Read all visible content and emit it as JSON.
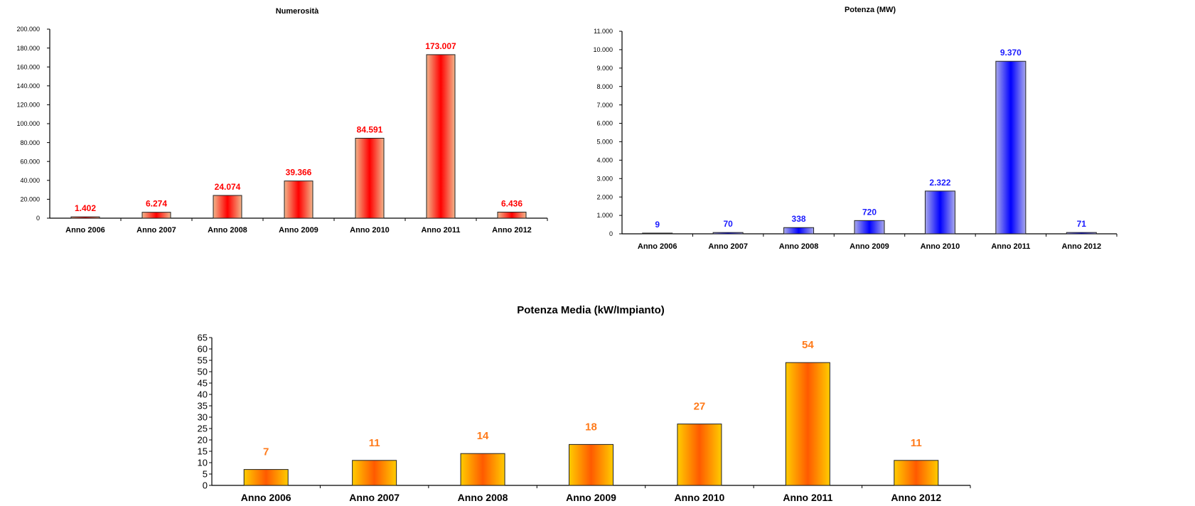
{
  "chart_data": [
    {
      "type": "bar",
      "title": "Numerosità",
      "categories": [
        "Anno 2006",
        "Anno 2007",
        "Anno 2008",
        "Anno 2009",
        "Anno 2010",
        "Anno 2011",
        "Anno 2012"
      ],
      "values": [
        1402,
        6274,
        24074,
        39366,
        84591,
        173007,
        6436
      ],
      "data_labels": [
        "1.402",
        "6.274",
        "24.074",
        "39.366",
        "84.591",
        "173.007",
        "6.436"
      ],
      "yticks": [
        "0",
        "20.000",
        "40.000",
        "60.000",
        "80.000",
        "100.000",
        "120.000",
        "140.000",
        "160.000",
        "180.000",
        "200.000"
      ],
      "ylim": [
        0,
        200000
      ],
      "xlabel": "",
      "ylabel": "",
      "grid": false,
      "bar_colors": {
        "edge": "#f2b58a",
        "center": "#ff0000"
      },
      "label_color": "#ff0000"
    },
    {
      "type": "bar",
      "title": "Potenza (MW)",
      "categories": [
        "Anno 2006",
        "Anno 2007",
        "Anno 2008",
        "Anno 2009",
        "Anno 2010",
        "Anno 2011",
        "Anno 2012"
      ],
      "values": [
        9,
        70,
        338,
        720,
        2322,
        9370,
        71
      ],
      "data_labels": [
        "9",
        "70",
        "338",
        "720",
        "2.322",
        "9.370",
        "71"
      ],
      "yticks": [
        "0",
        "1.000",
        "2.000",
        "3.000",
        "4.000",
        "5.000",
        "6.000",
        "7.000",
        "8.000",
        "9.000",
        "10.000",
        "11.000"
      ],
      "ylim": [
        0,
        11000
      ],
      "xlabel": "",
      "ylabel": "",
      "grid": false,
      "bar_colors": {
        "edge": "#a9a9ec",
        "center": "#0000ff"
      },
      "label_color": "#1a1aff"
    },
    {
      "type": "bar",
      "title": "Potenza Media (kW/Impianto)",
      "categories": [
        "Anno 2006",
        "Anno 2007",
        "Anno 2008",
        "Anno 2009",
        "Anno 2010",
        "Anno 2011",
        "Anno 2012"
      ],
      "values": [
        7,
        11,
        14,
        18,
        27,
        54,
        11
      ],
      "data_labels": [
        "7",
        "11",
        "14",
        "18",
        "27",
        "54",
        "11"
      ],
      "yticks": [
        "0",
        "5",
        "10",
        "15",
        "20",
        "25",
        "30",
        "35",
        "40",
        "45",
        "50",
        "55",
        "60",
        "65"
      ],
      "ylim": [
        0,
        65
      ],
      "xlabel": "",
      "ylabel": "",
      "grid": false,
      "bar_colors": {
        "edge": "#ffcc00",
        "center": "#ff5a00"
      },
      "label_color": "#ff7a1a"
    }
  ]
}
